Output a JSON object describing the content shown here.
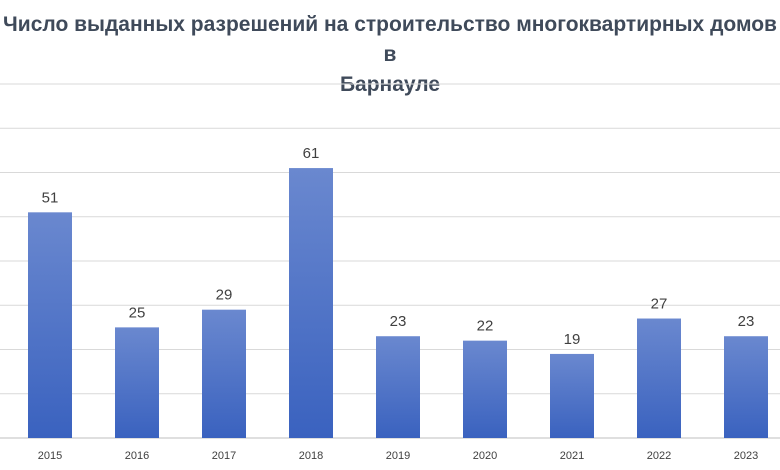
{
  "chart_data": {
    "type": "bar",
    "title": "Число выданных разрешений на строительство многоквартирных домов в\nБарнауле",
    "categories": [
      "2015",
      "2016",
      "2017",
      "2018",
      "2019",
      "2020",
      "2021",
      "2022",
      "2023"
    ],
    "values": [
      51,
      25,
      29,
      61,
      23,
      22,
      19,
      27,
      23
    ],
    "ylim": [
      0,
      80
    ],
    "grid": true,
    "data_labels": true,
    "legend": "none",
    "colors": {
      "bar_top": "#6a88cf",
      "bar_bottom": "#3a62bf",
      "grid": "#d9d9d9",
      "axis": "#bfbfbf"
    }
  }
}
